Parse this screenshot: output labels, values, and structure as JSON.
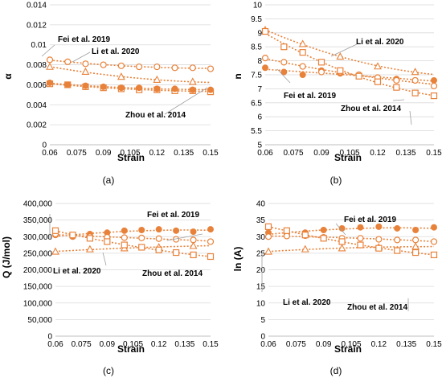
{
  "panel_labels": [
    "(a)",
    "(b)",
    "(c)",
    "(d)"
  ],
  "chart_data": [
    {
      "panel": "(a)",
      "type": "scatter",
      "xlabel": "Strain",
      "ylabel": "α",
      "xlim": [
        0.06,
        0.15
      ],
      "ylim": [
        0,
        0.014
      ],
      "xticks": [
        "0.06",
        "0.075",
        "0.09",
        "0.105",
        "0.12",
        "0.135",
        "0.15"
      ],
      "yticks": [
        "0",
        "0.002",
        "0.004",
        "0.006",
        "0.008",
        "0.01",
        "0.012",
        "0.014"
      ],
      "grid": true,
      "trendlines": "dotted",
      "series": [
        {
          "name": "Fei et al. 2019",
          "marker": "open-circle",
          "x": [
            0.06,
            0.07,
            0.08,
            0.09,
            0.1,
            0.11,
            0.12,
            0.13,
            0.14,
            0.15
          ],
          "y": [
            0.0085,
            0.0083,
            0.0081,
            0.008,
            0.0079,
            0.0078,
            0.0078,
            0.0077,
            0.0077,
            0.0076
          ]
        },
        {
          "name": "Li et al. 2020",
          "marker": "open-triangle",
          "x": [
            0.06,
            0.08,
            0.1,
            0.12,
            0.14
          ],
          "y": [
            0.0078,
            0.0073,
            0.0068,
            0.0065,
            0.0063
          ]
        },
        {
          "name": "Zhou et al. 2014",
          "marker": "open-square",
          "x": [
            0.06,
            0.07,
            0.08,
            0.09,
            0.1,
            0.11,
            0.12,
            0.13,
            0.14,
            0.15
          ],
          "y": [
            0.0061,
            0.006,
            0.0058,
            0.0057,
            0.0056,
            0.0055,
            0.0055,
            0.0054,
            0.0054,
            0.0053
          ]
        },
        {
          "name": "",
          "marker": "filled-circle",
          "x": [
            0.06,
            0.07,
            0.08,
            0.09,
            0.1,
            0.11,
            0.12,
            0.13,
            0.14,
            0.15
          ],
          "y": [
            0.0062,
            0.006,
            0.0059,
            0.0058,
            0.0057,
            0.0057,
            0.0056,
            0.0056,
            0.0055,
            0.0055
          ]
        }
      ]
    },
    {
      "panel": "(b)",
      "type": "scatter",
      "xlabel": "Strain",
      "ylabel": "n",
      "xlim": [
        0.06,
        0.15
      ],
      "ylim": [
        5,
        10
      ],
      "xticks": [
        "0.06",
        "0.075",
        "0.09",
        "0.105",
        "0.12",
        "0.135",
        "0.15"
      ],
      "yticks": [
        "5",
        "5.5",
        "6",
        "6.5",
        "7",
        "7.5",
        "8",
        "8.5",
        "9",
        "9.5",
        "10"
      ],
      "grid": true,
      "trendlines": "dotted",
      "series": [
        {
          "name": "Fei et al. 2019",
          "marker": "filled-circle",
          "x": [
            0.06,
            0.07,
            0.08,
            0.09,
            0.1,
            0.11,
            0.12,
            0.13,
            0.14,
            0.15
          ],
          "y": [
            7.75,
            7.6,
            7.5,
            7.65,
            7.55,
            7.5,
            7.4,
            7.35,
            7.3,
            7.3
          ]
        },
        {
          "name": "",
          "marker": "open-circle",
          "x": [
            0.06,
            0.07,
            0.08,
            0.09,
            0.1,
            0.11,
            0.12,
            0.13,
            0.14,
            0.15
          ],
          "y": [
            8.1,
            7.95,
            7.8,
            7.6,
            7.6,
            7.5,
            7.4,
            7.3,
            7.3,
            7.1
          ]
        },
        {
          "name": "Li et al. 2020",
          "marker": "open-triangle",
          "x": [
            0.06,
            0.08,
            0.1,
            0.12,
            0.14
          ],
          "y": [
            9.1,
            8.6,
            8.15,
            7.8,
            7.6
          ]
        },
        {
          "name": "Zhou et al. 2014",
          "marker": "open-square",
          "x": [
            0.06,
            0.07,
            0.08,
            0.09,
            0.1,
            0.11,
            0.12,
            0.13,
            0.14,
            0.15
          ],
          "y": [
            9.05,
            8.5,
            8.3,
            7.95,
            7.65,
            7.45,
            7.25,
            7.05,
            6.85,
            6.75
          ]
        }
      ]
    },
    {
      "panel": "(c)",
      "type": "scatter",
      "xlabel": "Strain",
      "ylabel": "Q (J/mol)",
      "xlim": [
        0.06,
        0.15
      ],
      "ylim": [
        0,
        400000
      ],
      "xticks": [
        "0.06",
        "0.075",
        "0.09",
        "0.105",
        "0.12",
        "0.135",
        "0.15"
      ],
      "yticks": [
        "0",
        "50,000",
        "100,000",
        "150,000",
        "200,000",
        "250,000",
        "300,000",
        "350,000",
        "400,000"
      ],
      "grid": true,
      "trendlines": "dotted",
      "series": [
        {
          "name": "Fei et al. 2019",
          "marker": "filled-circle",
          "x": [
            0.06,
            0.07,
            0.08,
            0.09,
            0.1,
            0.11,
            0.12,
            0.13,
            0.14,
            0.15
          ],
          "y": [
            305000,
            300000,
            308000,
            312000,
            318000,
            320000,
            322000,
            318000,
            315000,
            322000
          ]
        },
        {
          "name": "",
          "marker": "open-circle",
          "x": [
            0.06,
            0.07,
            0.08,
            0.09,
            0.1,
            0.11,
            0.12,
            0.13,
            0.14,
            0.15
          ],
          "y": [
            308000,
            303000,
            300000,
            298000,
            297000,
            296000,
            294000,
            292000,
            290000,
            285000
          ]
        },
        {
          "name": "Li et al. 2020",
          "marker": "open-triangle",
          "x": [
            0.06,
            0.08,
            0.1,
            0.12,
            0.14
          ],
          "y": [
            255000,
            262000,
            265000,
            268000,
            272000
          ]
        },
        {
          "name": "Zhou et al. 2014",
          "marker": "open-square",
          "x": [
            0.06,
            0.07,
            0.08,
            0.09,
            0.1,
            0.11,
            0.12,
            0.13,
            0.14,
            0.15
          ],
          "y": [
            318000,
            305000,
            295000,
            285000,
            275000,
            268000,
            260000,
            252000,
            245000,
            240000
          ]
        }
      ]
    },
    {
      "panel": "(d)",
      "type": "scatter",
      "xlabel": "Strain",
      "ylabel": "ln (A)",
      "xlim": [
        0.06,
        0.15
      ],
      "ylim": [
        0,
        40
      ],
      "xticks": [
        "0.06",
        "0.075",
        "0.09",
        "0.105",
        "0.12",
        "0.135",
        "0.15"
      ],
      "yticks": [
        "0",
        "5",
        "10",
        "15",
        "20",
        "25",
        "30",
        "35",
        "40"
      ],
      "grid": true,
      "trendlines": "dotted",
      "series": [
        {
          "name": "Fei et al. 2019",
          "marker": "filled-circle",
          "x": [
            0.06,
            0.07,
            0.08,
            0.09,
            0.1,
            0.11,
            0.12,
            0.13,
            0.14,
            0.15
          ],
          "y": [
            31.2,
            30.7,
            31.2,
            32.0,
            32.5,
            32.8,
            33.0,
            32.5,
            32.0,
            32.8
          ]
        },
        {
          "name": "",
          "marker": "open-circle",
          "x": [
            0.06,
            0.07,
            0.08,
            0.09,
            0.1,
            0.11,
            0.12,
            0.13,
            0.14,
            0.15
          ],
          "y": [
            30.0,
            30.2,
            30.3,
            29.8,
            29.5,
            29.5,
            29.2,
            29.0,
            29.0,
            28.5
          ]
        },
        {
          "name": "Li et al. 2020",
          "marker": "open-triangle",
          "x": [
            0.06,
            0.08,
            0.1,
            0.12,
            0.14
          ],
          "y": [
            25.5,
            26.2,
            26.5,
            26.8,
            27.0
          ]
        },
        {
          "name": "Zhou et al. 2014",
          "marker": "open-square",
          "x": [
            0.06,
            0.07,
            0.08,
            0.09,
            0.1,
            0.11,
            0.12,
            0.13,
            0.14,
            0.15
          ],
          "y": [
            33.0,
            31.8,
            30.5,
            29.5,
            28.5,
            27.5,
            26.5,
            25.8,
            25.2,
            24.5
          ]
        }
      ]
    }
  ],
  "colors": {
    "series": "#E8823A",
    "grid": "#d9d9d9",
    "axis": "#000000",
    "callout": "#9e9e9e"
  }
}
